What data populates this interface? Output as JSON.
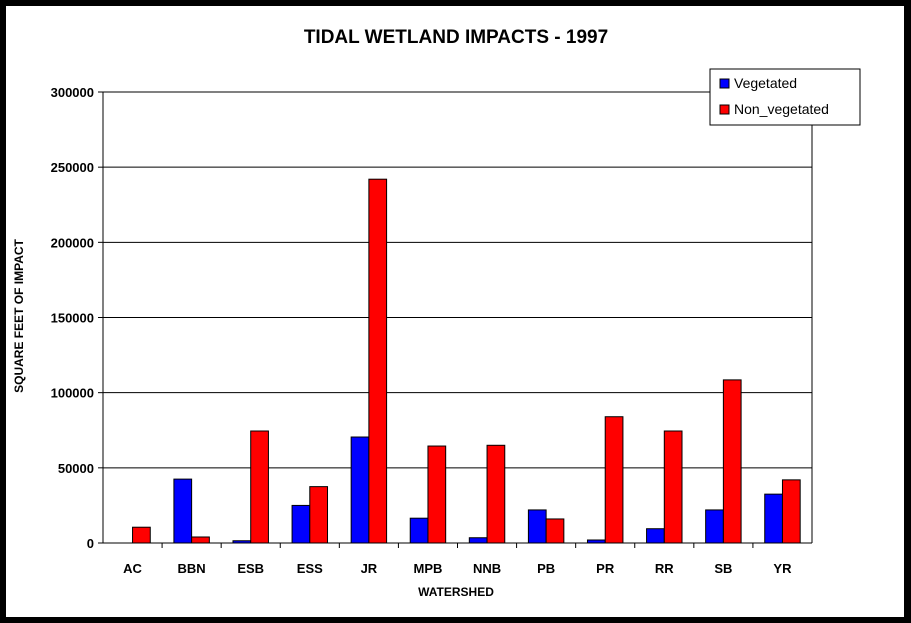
{
  "chart_data": {
    "type": "bar",
    "title": "TIDAL WETLAND IMPACTS - 1997",
    "xlabel": "WATERSHED",
    "ylabel": "SQUARE FEET OF IMPACT",
    "ylim": [
      0,
      300000
    ],
    "yticks": [
      0,
      50000,
      100000,
      150000,
      200000,
      250000,
      300000
    ],
    "ytick_labels": [
      "0",
      "50000",
      "100000",
      "150000",
      "200000",
      "250000",
      "300000"
    ],
    "grid": true,
    "legend_position": "top-right",
    "categories": [
      "AC",
      "BBN",
      "ESB",
      "ESS",
      "JR",
      "MPB",
      "NNB",
      "PB",
      "PR",
      "RR",
      "SB",
      "YR"
    ],
    "series": [
      {
        "name": "Vegetated",
        "color": "#0000ff",
        "values": [
          0,
          42500,
          1500,
          25000,
          70500,
          16500,
          3500,
          22000,
          2000,
          9500,
          22000,
          32500
        ]
      },
      {
        "name": "Non_vegetated",
        "color": "#ff0000",
        "values": [
          10500,
          4000,
          74500,
          37500,
          242000,
          64500,
          65000,
          16000,
          84000,
          74500,
          108500,
          42000
        ]
      }
    ]
  }
}
